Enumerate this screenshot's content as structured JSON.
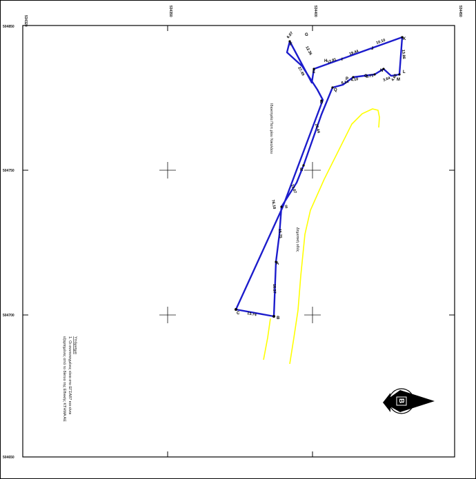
{
  "frame": {
    "top_ticks": [
      "534320",
      "534350",
      "534400",
      "534450"
    ],
    "left_ticks": [
      "504850",
      "504750",
      "504700",
      "504650"
    ]
  },
  "labels": {
    "parcel_owner": "Ιδιοκτησία Παπ.ρίου Νικολάου",
    "road": "Δημοτική οδός"
  },
  "legend": {
    "title": "Υπόμνημα",
    "line1": "1. Οι συντεταγμένες είναι στο ΕΓΣΑ87 και είναι",
    "line2": "εξαρτημένες από το δίκτυο της Εθνικής ΚΤΗΜΑ ΑΕ"
  },
  "north_arrow": {
    "letter": "B"
  },
  "vertices": [
    "A",
    "B",
    "C",
    "D",
    "E",
    "F",
    "G",
    "H",
    "I",
    "J",
    "K",
    "L",
    "M",
    "N",
    "O",
    "P",
    "Q",
    "R",
    "S"
  ],
  "segments": [
    "16.37",
    "13.74",
    "76.18",
    "26.44",
    "6.14",
    "4.10",
    "3.71",
    "3.64",
    "4.68",
    "13.86",
    "10.10",
    "19.44",
    "12.81",
    "12.36",
    "6.07",
    "27.49",
    "13.67",
    "15.75"
  ],
  "colors": {
    "boundary": "#1c1ccc",
    "road": "#ffff00",
    "frame": "#000000"
  }
}
